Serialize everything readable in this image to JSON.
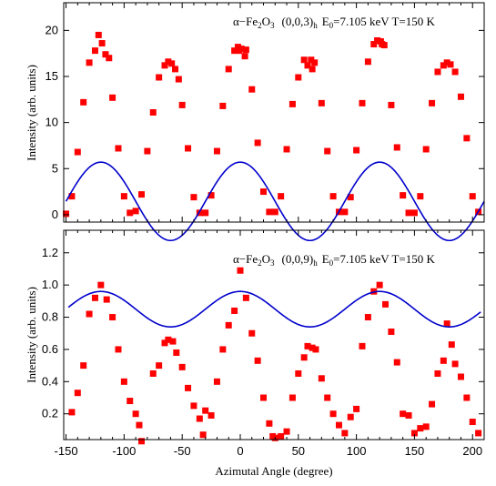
{
  "chart_data": [
    {
      "type": "scatter",
      "annotation": {
        "compound": "α−Fe",
        "sub1": "2",
        "o": "O",
        "sub2": "3",
        "reflection": "(0,0,3)",
        "sub_h": "h",
        "e_label": "E",
        "e_sub": "0",
        "rest": "=7.105 keV T=150 K"
      },
      "ylabel": "Intensity (arb. units)",
      "xlabel": "",
      "xlim": [
        -152,
        210
      ],
      "ylim": [
        -0.8,
        23
      ],
      "yticks": [
        0,
        5,
        10,
        15,
        20
      ],
      "grid": false,
      "series": [
        {
          "kind": "points",
          "color": "#ff0000",
          "x": [
            -150,
            -145,
            -140,
            -135,
            -130,
            -125,
            -122,
            -119,
            -116,
            -113,
            -110,
            -105,
            -100,
            -95,
            -90,
            -85,
            -80,
            -75,
            -70,
            -65,
            -62,
            -59,
            -56,
            -53,
            -50,
            -45,
            -40,
            -35,
            -30,
            -25,
            -20,
            -15,
            -10,
            -5,
            -2,
            1,
            4,
            -1,
            5,
            10,
            15,
            20,
            25,
            30,
            35,
            40,
            45,
            50,
            55,
            58,
            61,
            64,
            62,
            70,
            75,
            80,
            85,
            90,
            95,
            100,
            105,
            110,
            115,
            118,
            121,
            124,
            122,
            130,
            135,
            140,
            145,
            150,
            155,
            160,
            165,
            170,
            175,
            178,
            181,
            185,
            190,
            195,
            200,
            205
          ],
          "y": [
            0.1,
            2.0,
            6.8,
            12.2,
            16.5,
            17.8,
            19.5,
            18.6,
            17.4,
            17.0,
            12.7,
            7.2,
            2.0,
            0.2,
            0.4,
            2.2,
            6.9,
            11.1,
            14.9,
            16.2,
            16.6,
            16.4,
            15.8,
            14.7,
            11.9,
            7.2,
            1.9,
            0.2,
            0.2,
            2.1,
            6.9,
            11.8,
            15.8,
            17.8,
            18.2,
            18.0,
            17.2,
            17.8,
            17.9,
            13.6,
            7.8,
            2.5,
            0.3,
            0.3,
            2.0,
            7.1,
            12.0,
            14.9,
            16.8,
            16.2,
            16.8,
            16.5,
            15.8,
            12.1,
            6.9,
            2.0,
            0.3,
            0.3,
            1.9,
            7.0,
            12.1,
            16.6,
            18.5,
            18.9,
            18.8,
            18.4,
            18.5,
            11.9,
            7.3,
            2.1,
            0.2,
            0.2,
            2.0,
            7.1,
            12.1,
            15.5,
            16.2,
            16.5,
            16.3,
            15.5,
            12.8,
            8.3,
            2.0,
            0.3
          ]
        },
        {
          "kind": "fit",
          "color": "#0000cc",
          "params": {
            "a": 1.45,
            "b": 4.25,
            "period": 120,
            "phase": -120,
            "xrange": [
              -150,
              210
            ]
          }
        }
      ]
    },
    {
      "type": "scatter",
      "annotation": {
        "compound": "α−Fe",
        "sub1": "2",
        "o": "O",
        "sub2": "3",
        "reflection": "(0,0,9)",
        "sub_h": "h",
        "e_label": "E",
        "e_sub": "0",
        "rest": "=7.105 keV T=150 K"
      },
      "ylabel": "Intensity (arb. units)",
      "xlabel": "Azimutal Angle (degree)",
      "xlim": [
        -152,
        210
      ],
      "xticks": [
        -150,
        -100,
        -50,
        0,
        50,
        100,
        150,
        200
      ],
      "ylim": [
        0.04,
        1.34
      ],
      "yticks": [
        0.2,
        0.4,
        0.6,
        0.8,
        1.0,
        1.2
      ],
      "grid": false,
      "series": [
        {
          "kind": "points",
          "color": "#ff0000",
          "x": [
            -145,
            -140,
            -135,
            -130,
            -125,
            -120,
            -115,
            -110,
            -105,
            -100,
            -95,
            -90,
            -87,
            -85,
            -75,
            -70,
            -65,
            -62,
            -58,
            -55,
            -50,
            -45,
            -40,
            -35,
            -32,
            -30,
            -25,
            -20,
            -15,
            -10,
            -5,
            0,
            5,
            10,
            15,
            20,
            25,
            28,
            30,
            35,
            40,
            45,
            50,
            55,
            58,
            62,
            65,
            70,
            75,
            80,
            85,
            90,
            95,
            100,
            105,
            110,
            115,
            120,
            125,
            130,
            135,
            140,
            145,
            150,
            155,
            160,
            165,
            170,
            175,
            178,
            182,
            185,
            190,
            195,
            200,
            205
          ],
          "y": [
            0.21,
            0.33,
            0.5,
            0.82,
            0.92,
            1.0,
            0.91,
            0.8,
            0.6,
            0.4,
            0.28,
            0.2,
            0.13,
            0.03,
            0.45,
            0.5,
            0.64,
            0.66,
            0.65,
            0.58,
            0.49,
            0.36,
            0.25,
            0.17,
            0.07,
            0.22,
            0.19,
            0.4,
            0.6,
            0.75,
            0.84,
            1.09,
            0.92,
            0.7,
            0.53,
            0.3,
            0.14,
            0.06,
            0.05,
            0.06,
            0.09,
            0.3,
            0.45,
            0.55,
            0.62,
            0.61,
            0.6,
            0.42,
            0.3,
            0.2,
            0.13,
            0.08,
            0.18,
            0.23,
            0.62,
            0.8,
            0.96,
            1.0,
            0.88,
            0.71,
            0.52,
            0.2,
            0.19,
            0.08,
            0.11,
            0.12,
            0.26,
            0.45,
            0.53,
            0.76,
            0.63,
            0.51,
            0.43,
            0.3,
            0.15,
            0.08
          ]
        },
        {
          "kind": "fit",
          "color": "#0000cc",
          "params": {
            "a": 0.85,
            "b": 0.11,
            "period": 120,
            "phase": -120,
            "xrange": [
              -148,
              207
            ]
          }
        }
      ]
    }
  ]
}
